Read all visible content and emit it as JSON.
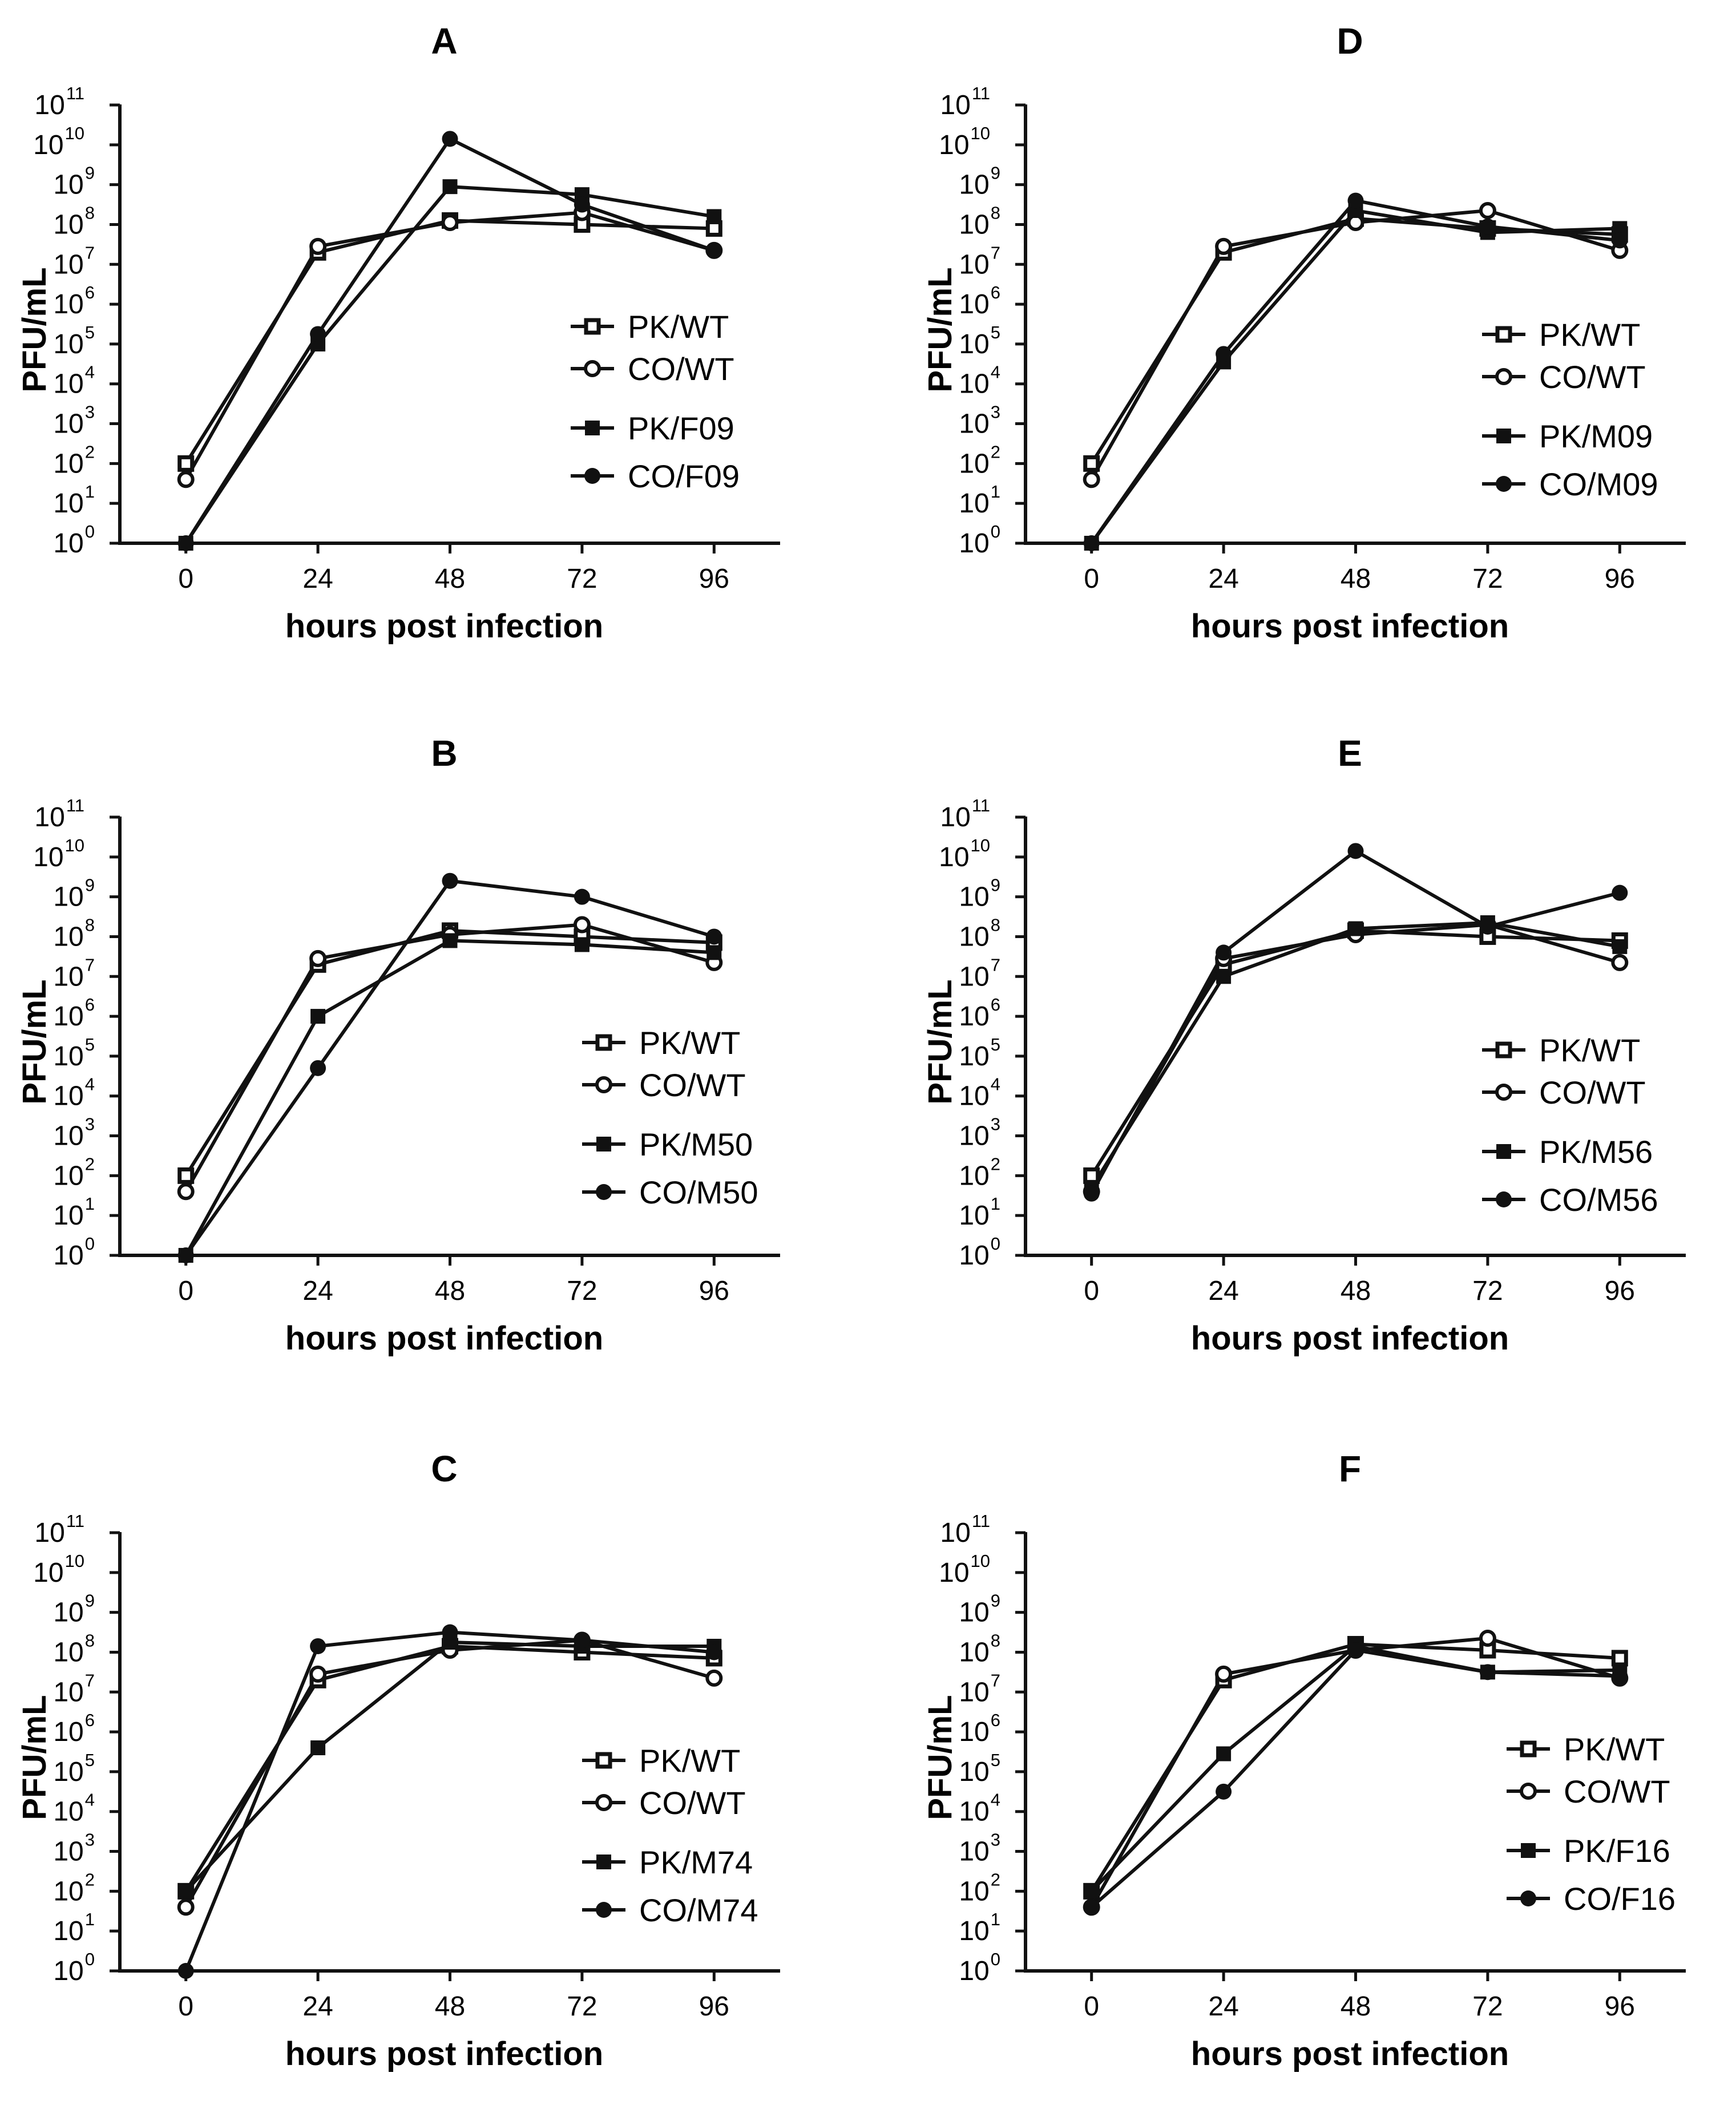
{
  "chart_data": [
    {
      "panel": "A",
      "type": "line",
      "title": "A",
      "xlabel": "hours post infection",
      "ylabel": "PFU/mL",
      "x": [
        0,
        24,
        48,
        72,
        96
      ],
      "xlim": [
        -12,
        108
      ],
      "yscale": "log10",
      "ylim_exp": [
        0,
        11
      ],
      "ytick_base": "10",
      "ytick_exponents": [
        "0",
        "1",
        "2",
        "3",
        "4",
        "5",
        "6",
        "7",
        "8",
        "9",
        "10",
        "11"
      ],
      "xtick_labels": [
        "0",
        "24",
        "48",
        "72",
        "96"
      ],
      "series": [
        {
          "name": "PK/WT",
          "marker": "square-open",
          "log10_values": [
            2.0,
            7.3,
            8.1,
            8.0,
            7.9
          ]
        },
        {
          "name": "CO/WT",
          "marker": "circle-open",
          "log10_values": [
            1.6,
            7.45,
            8.05,
            8.3,
            7.35
          ]
        },
        {
          "name": "PK/F09",
          "marker": "square-filled",
          "log10_values": [
            0,
            5.0,
            8.95,
            8.75,
            8.2
          ]
        },
        {
          "name": "CO/F09",
          "marker": "circle-filled",
          "log10_values": [
            0,
            5.25,
            10.15,
            8.5,
            7.35
          ]
        }
      ]
    },
    {
      "panel": "D",
      "type": "line",
      "title": "D",
      "xlabel": "hours post infection",
      "ylabel": "PFU/mL",
      "x": [
        0,
        24,
        48,
        72,
        96
      ],
      "xlim": [
        -12,
        108
      ],
      "yscale": "log10",
      "ylim_exp": [
        0,
        11
      ],
      "ytick_base": "10",
      "ytick_exponents": [
        "0",
        "1",
        "2",
        "3",
        "4",
        "5",
        "6",
        "7",
        "8",
        "9",
        "10",
        "11"
      ],
      "xtick_labels": [
        "0",
        "24",
        "48",
        "72",
        "96"
      ],
      "series": [
        {
          "name": "PK/WT",
          "marker": "square-open",
          "log10_values": [
            2.0,
            7.3,
            8.15,
            7.9,
            7.75
          ]
        },
        {
          "name": "CO/WT",
          "marker": "circle-open",
          "log10_values": [
            1.6,
            7.45,
            8.05,
            8.35,
            7.35
          ]
        },
        {
          "name": "PK/M09",
          "marker": "square-filled",
          "log10_values": [
            0,
            4.55,
            8.35,
            7.8,
            7.9
          ]
        },
        {
          "name": "CO/M09",
          "marker": "circle-filled",
          "log10_values": [
            0,
            4.75,
            8.6,
            7.95,
            7.6
          ]
        }
      ]
    },
    {
      "panel": "B",
      "type": "line",
      "title": "B",
      "xlabel": "hours post infection",
      "ylabel": "PFU/mL",
      "x": [
        0,
        24,
        48,
        72,
        96
      ],
      "xlim": [
        -12,
        108
      ],
      "yscale": "log10",
      "ylim_exp": [
        0,
        11
      ],
      "ytick_base": "10",
      "ytick_exponents": [
        "0",
        "1",
        "2",
        "3",
        "4",
        "5",
        "6",
        "7",
        "8",
        "9",
        "10",
        "11"
      ],
      "xtick_labels": [
        "0",
        "24",
        "48",
        "72",
        "96"
      ],
      "series": [
        {
          "name": "PK/WT",
          "marker": "square-open",
          "log10_values": [
            2.0,
            7.3,
            8.15,
            8.0,
            7.85
          ]
        },
        {
          "name": "CO/WT",
          "marker": "circle-open",
          "log10_values": [
            1.6,
            7.45,
            8.05,
            8.3,
            7.35
          ]
        },
        {
          "name": "PK/M50",
          "marker": "square-filled",
          "log10_values": [
            0,
            6.0,
            7.9,
            7.8,
            7.6
          ]
        },
        {
          "name": "CO/M50",
          "marker": "circle-filled",
          "log10_values": [
            0,
            4.7,
            9.4,
            9.0,
            8.0
          ]
        }
      ]
    },
    {
      "panel": "E",
      "type": "line",
      "title": "E",
      "xlabel": "hours post infection",
      "ylabel": "PFU/mL",
      "x": [
        0,
        24,
        48,
        72,
        96
      ],
      "xlim": [
        -12,
        108
      ],
      "yscale": "log10",
      "ylim_exp": [
        0,
        11
      ],
      "ytick_base": "10",
      "ytick_exponents": [
        "0",
        "1",
        "2",
        "3",
        "4",
        "5",
        "6",
        "7",
        "8",
        "9",
        "10",
        "11"
      ],
      "xtick_labels": [
        "0",
        "24",
        "48",
        "72",
        "96"
      ],
      "series": [
        {
          "name": "PK/WT",
          "marker": "square-open",
          "log10_values": [
            2.0,
            7.3,
            8.15,
            8.0,
            7.9
          ]
        },
        {
          "name": "CO/WT",
          "marker": "circle-open",
          "log10_values": [
            1.6,
            7.45,
            8.05,
            8.3,
            7.35
          ]
        },
        {
          "name": "PK/M56",
          "marker": "square-filled",
          "log10_values": [
            1.7,
            7.0,
            8.2,
            8.35,
            7.75
          ]
        },
        {
          "name": "CO/M56",
          "marker": "circle-filled",
          "log10_values": [
            1.55,
            7.6,
            10.15,
            8.25,
            9.1
          ]
        }
      ]
    },
    {
      "panel": "C",
      "type": "line",
      "title": "C",
      "xlabel": "hours post infection",
      "ylabel": "PFU/mL",
      "x": [
        0,
        24,
        48,
        72,
        96
      ],
      "xlim": [
        -12,
        108
      ],
      "yscale": "log10",
      "ylim_exp": [
        0,
        11
      ],
      "ytick_base": "10",
      "ytick_exponents": [
        "0",
        "1",
        "2",
        "3",
        "4",
        "5",
        "6",
        "7",
        "8",
        "9",
        "10",
        "11"
      ],
      "xtick_labels": [
        "0",
        "24",
        "48",
        "72",
        "96"
      ],
      "series": [
        {
          "name": "PK/WT",
          "marker": "square-open",
          "log10_values": [
            2.0,
            7.3,
            8.15,
            8.0,
            7.85
          ]
        },
        {
          "name": "CO/WT",
          "marker": "circle-open",
          "log10_values": [
            1.6,
            7.45,
            8.05,
            8.3,
            7.35
          ]
        },
        {
          "name": "PK/M74",
          "marker": "square-filled",
          "log10_values": [
            2.0,
            5.6,
            8.25,
            8.15,
            8.15
          ]
        },
        {
          "name": "CO/M74",
          "marker": "circle-filled",
          "log10_values": [
            0,
            8.15,
            8.5,
            8.3,
            8.0
          ]
        }
      ]
    },
    {
      "panel": "F",
      "type": "line",
      "title": "F",
      "xlabel": "hours post infection",
      "ylabel": "PFU/mL",
      "x": [
        0,
        24,
        48,
        72,
        96
      ],
      "xlim": [
        -12,
        108
      ],
      "yscale": "log10",
      "ylim_exp": [
        0,
        11
      ],
      "ytick_base": "10",
      "ytick_exponents": [
        "0",
        "1",
        "2",
        "3",
        "4",
        "5",
        "6",
        "7",
        "8",
        "9",
        "10",
        "11"
      ],
      "xtick_labels": [
        "0",
        "24",
        "48",
        "72",
        "96"
      ],
      "series": [
        {
          "name": "PK/WT",
          "marker": "square-open",
          "log10_values": [
            2.0,
            7.3,
            8.2,
            8.05,
            7.85
          ]
        },
        {
          "name": "CO/WT",
          "marker": "circle-open",
          "log10_values": [
            1.6,
            7.45,
            8.05,
            8.35,
            7.35
          ]
        },
        {
          "name": "PK/F16",
          "marker": "square-filled",
          "log10_values": [
            2.0,
            5.45,
            8.15,
            7.5,
            7.55
          ]
        },
        {
          "name": "CO/F16",
          "marker": "circle-filled",
          "log10_values": [
            1.6,
            4.5,
            8.05,
            7.5,
            7.4
          ]
        }
      ]
    }
  ]
}
